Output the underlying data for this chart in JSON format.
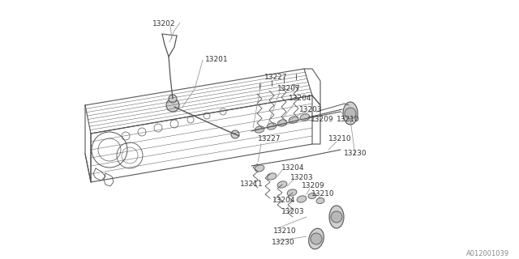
{
  "bg_color": "#ffffff",
  "line_color": "#555555",
  "label_color": "#333333",
  "watermark": "A012001039",
  "label_fontsize": 6.5,
  "watermark_fontsize": 6.0,
  "labels_upper": [
    [
      "13227",
      326,
      96
    ],
    [
      "13207",
      342,
      109
    ],
    [
      "13204",
      356,
      122
    ],
    [
      "13203",
      369,
      135
    ],
    [
      "13209",
      383,
      148
    ],
    [
      "13210",
      415,
      148
    ]
  ],
  "labels_mid": [
    [
      "13227",
      318,
      172
    ],
    [
      "13210",
      405,
      172
    ],
    [
      "13230",
      424,
      190
    ]
  ],
  "labels_lower": [
    [
      "13204",
      347,
      207
    ],
    [
      "13203",
      358,
      220
    ],
    [
      "13211",
      296,
      228
    ],
    [
      "13209",
      372,
      230
    ],
    [
      "13210",
      384,
      240
    ],
    [
      "13204",
      336,
      248
    ],
    [
      "13203",
      347,
      262
    ],
    [
      "13210",
      337,
      285
    ],
    [
      "13230",
      335,
      300
    ]
  ],
  "labels_topleft": [
    [
      "13202",
      188,
      30
    ],
    [
      "13201",
      242,
      72
    ]
  ]
}
